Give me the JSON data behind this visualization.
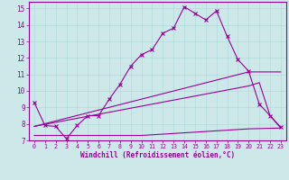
{
  "xlabel": "Windchill (Refroidissement éolien,°C)",
  "xlim": [
    -0.5,
    23.5
  ],
  "ylim": [
    7,
    15.4
  ],
  "xticks": [
    0,
    1,
    2,
    3,
    4,
    5,
    6,
    7,
    8,
    9,
    10,
    11,
    12,
    13,
    14,
    15,
    16,
    17,
    18,
    19,
    20,
    21,
    22,
    23
  ],
  "yticks": [
    7,
    8,
    9,
    10,
    11,
    12,
    13,
    14,
    15
  ],
  "bg_color": "#cce8e8",
  "line_color": "#990099",
  "line1_x": [
    0,
    1,
    2,
    3,
    4,
    5,
    6,
    7,
    8,
    9,
    10,
    11,
    12,
    13,
    14,
    15,
    16,
    17,
    18,
    19,
    20,
    21,
    22,
    23
  ],
  "line1_y": [
    9.3,
    7.9,
    7.85,
    7.1,
    7.9,
    8.5,
    8.5,
    9.5,
    10.4,
    11.5,
    12.2,
    12.5,
    13.5,
    13.8,
    15.1,
    14.7,
    14.3,
    14.85,
    13.3,
    11.9,
    11.2,
    9.2,
    8.5,
    7.8
  ],
  "line2_x": [
    0,
    3,
    10,
    15,
    20,
    23
  ],
  "line2_y": [
    7.3,
    7.3,
    7.3,
    7.5,
    7.7,
    7.75
  ],
  "line3_x": [
    0,
    20,
    23
  ],
  "line3_y": [
    7.85,
    11.15,
    11.15
  ],
  "line4_x": [
    0,
    20,
    21,
    22,
    23
  ],
  "line4_y": [
    7.85,
    10.3,
    10.5,
    8.5,
    7.75
  ]
}
